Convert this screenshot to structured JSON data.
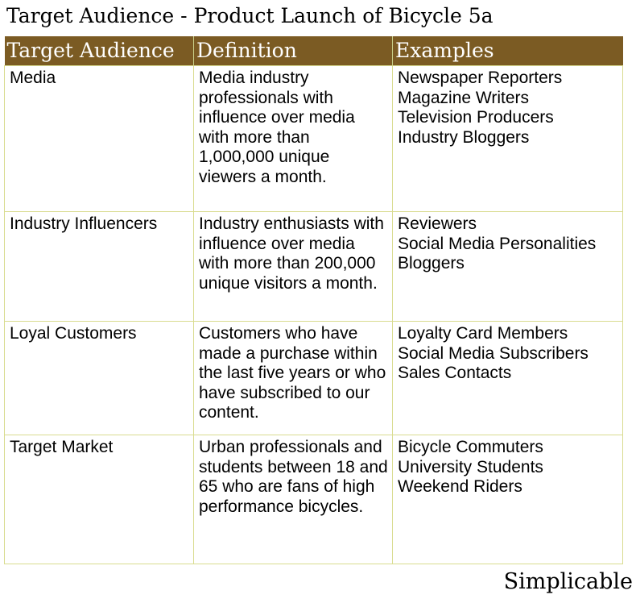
{
  "title": "Target Audience - Product Launch of Bicycle 5a",
  "columns": [
    "Target Audience",
    "Definition",
    "Examples"
  ],
  "rows": [
    {
      "audience": "Media",
      "definition": "Media industry professionals with influence over media with more than 1,000,000 unique viewers a month.",
      "examples": [
        "Newspaper Reporters",
        "Magazine Writers",
        "Television Producers",
        "Industry Bloggers"
      ]
    },
    {
      "audience": "Industry Influencers",
      "definition": "Industry enthusiasts with influence over media with more than 200,000 unique visitors a month.",
      "examples": [
        "Reviewers",
        "Social Media Personalities",
        "Bloggers"
      ]
    },
    {
      "audience": "Loyal Customers",
      "definition": "Customers who have made a purchase within the last five years or who have subscribed to our content.",
      "examples": [
        "Loyalty Card Members",
        "Social Media Subscribers",
        "Sales Contacts"
      ]
    },
    {
      "audience": "Target Market",
      "definition": "Urban professionals and students between 18 and 65 who are fans of high performance bicycles.",
      "examples": [
        "Bicycle Commuters",
        "University Students",
        "Weekend Riders"
      ]
    }
  ],
  "brand": "Simplicable",
  "colors": {
    "header_bg": "#7b5b23",
    "grid_line": "#d9dc90"
  }
}
